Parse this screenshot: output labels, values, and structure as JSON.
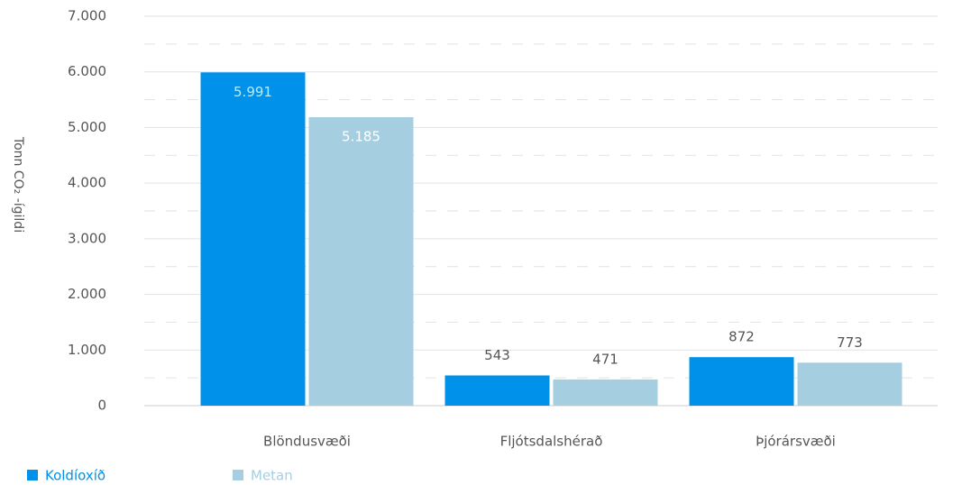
{
  "chart_data": {
    "type": "bar",
    "y_label": "Tonn CO₂ -ígildi",
    "categories": [
      "Blöndusvæði",
      "Fljótsdalshérað",
      "Þjórársvæði"
    ],
    "series": [
      {
        "name": "Koldíoxíð",
        "color": "#0091ea",
        "values": [
          5991,
          543,
          872
        ],
        "value_labels": [
          "5.991",
          "543",
          "872"
        ]
      },
      {
        "name": "Metan",
        "color": "#a5cfe0",
        "values": [
          5185,
          471,
          773
        ],
        "value_labels": [
          "5.185",
          "471",
          "773"
        ]
      }
    ],
    "ylim": [
      0,
      7000
    ],
    "yticks": [
      0,
      {
        "value": 1000,
        "label": "1.000"
      },
      {
        "value": 2000,
        "label": "2.000"
      },
      {
        "value": 3000,
        "label": "3.000"
      },
      {
        "value": 4000,
        "label": "4.000"
      },
      {
        "value": 5000,
        "label": "5.000"
      },
      {
        "value": 6000,
        "label": "6.000"
      },
      {
        "value": 7000,
        "label": "7.000"
      }
    ],
    "minor_yticks": [
      500,
      1500,
      2500,
      3500,
      4500,
      5500,
      6500
    ],
    "grid": true
  }
}
